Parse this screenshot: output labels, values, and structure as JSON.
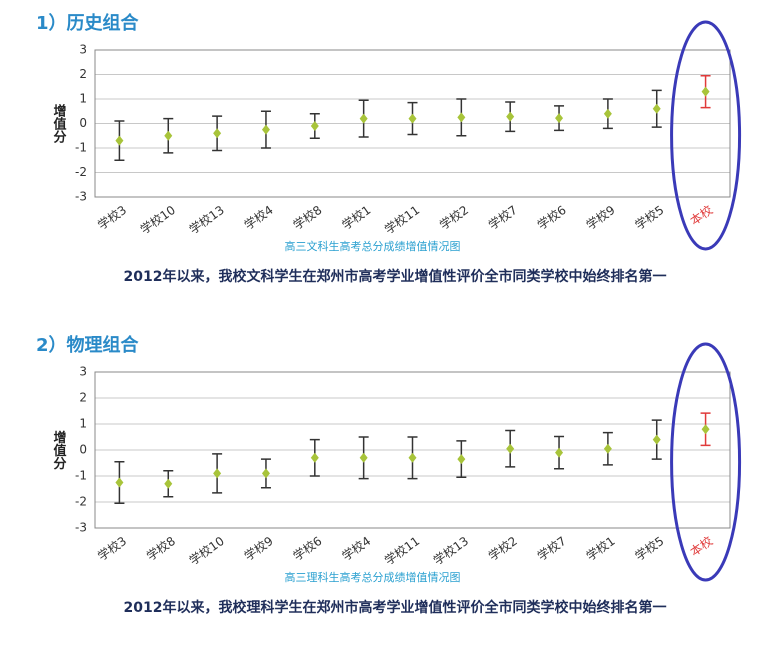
{
  "chart_data": [
    {
      "type": "errorbar",
      "section": "1）历史组合",
      "ylabel": "增值分",
      "title": "高三文科生高考总分成绩增值情况图",
      "note": "2012年以来，我校文科学生在郑州市高考学业增值性评价全市同类学校中始终排名第一",
      "categories": [
        "学校3",
        "学校10",
        "学校13",
        "学校4",
        "学校8",
        "学校1",
        "学校11",
        "学校2",
        "学校7",
        "学校6",
        "学校9",
        "学校5",
        "本校"
      ],
      "values": [
        -0.7,
        -0.5,
        -0.4,
        -0.25,
        -0.1,
        0.2,
        0.2,
        0.25,
        0.28,
        0.22,
        0.4,
        0.6,
        1.3
      ],
      "errors": [
        0.8,
        0.7,
        0.7,
        0.75,
        0.5,
        0.75,
        0.65,
        0.75,
        0.6,
        0.5,
        0.6,
        0.75,
        0.65
      ],
      "point_color": "#a8c43a",
      "error_colors": [
        "#333333",
        "#333333",
        "#333333",
        "#333333",
        "#333333",
        "#333333",
        "#333333",
        "#333333",
        "#333333",
        "#333333",
        "#333333",
        "#333333",
        "#e03a3a"
      ],
      "label_colors": [
        "#333333",
        "#333333",
        "#333333",
        "#333333",
        "#333333",
        "#333333",
        "#333333",
        "#333333",
        "#333333",
        "#333333",
        "#333333",
        "#333333",
        "#e03a3a"
      ],
      "ylim": [
        -3,
        3
      ],
      "yticks": [
        -3,
        -2,
        -1,
        0,
        1,
        2,
        3
      ],
      "grid": true
    },
    {
      "type": "errorbar",
      "section": "2）物理组合",
      "ylabel": "增值分",
      "title": "高三理科生高考总分成绩增值情况图",
      "note": "2012年以来，我校理科学生在郑州市高考学业增值性评价全市同类学校中始终排名第一",
      "categories": [
        "学校3",
        "学校8",
        "学校10",
        "学校9",
        "学校6",
        "学校4",
        "学校11",
        "学校13",
        "学校2",
        "学校7",
        "学校1",
        "学校5",
        "本校"
      ],
      "values": [
        -1.25,
        -1.3,
        -0.9,
        -0.9,
        -0.3,
        -0.3,
        -0.3,
        -0.35,
        0.05,
        -0.1,
        0.05,
        0.4,
        0.8
      ],
      "errors": [
        0.8,
        0.5,
        0.75,
        0.55,
        0.7,
        0.8,
        0.8,
        0.7,
        0.7,
        0.62,
        0.62,
        0.75,
        0.62
      ],
      "point_color": "#a8c43a",
      "error_colors": [
        "#333333",
        "#333333",
        "#333333",
        "#333333",
        "#333333",
        "#333333",
        "#333333",
        "#333333",
        "#333333",
        "#333333",
        "#333333",
        "#333333",
        "#e03a3a"
      ],
      "label_colors": [
        "#333333",
        "#333333",
        "#333333",
        "#333333",
        "#333333",
        "#333333",
        "#333333",
        "#333333",
        "#333333",
        "#333333",
        "#333333",
        "#333333",
        "#e03a3a"
      ],
      "ylim": [
        -3,
        3
      ],
      "yticks": [
        -3,
        -2,
        -1,
        0,
        1,
        2,
        3
      ],
      "grid": true
    }
  ]
}
